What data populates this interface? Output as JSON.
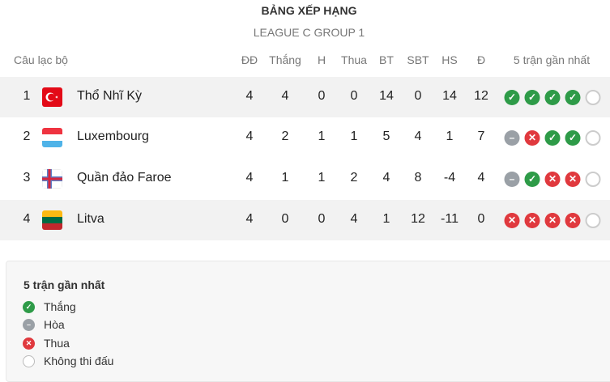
{
  "title": "BẢNG XẾP HẠNG",
  "subtitle": "LEAGUE C GROUP 1",
  "headers": {
    "club": "Câu lạc bộ",
    "played": "ĐĐ",
    "won": "Thắng",
    "draw": "H",
    "lost": "Thua",
    "gf": "BT",
    "ga": "SBT",
    "gd": "HS",
    "pts": "Đ",
    "form": "5 trận gần nhất"
  },
  "rows": [
    {
      "rank": "1",
      "team": "Thổ Nhĩ Kỳ",
      "flag": "turkey",
      "played": "4",
      "won": "4",
      "draw": "0",
      "lost": "0",
      "gf": "14",
      "ga": "0",
      "gd": "14",
      "pts": "12",
      "form": [
        "W",
        "W",
        "W",
        "W",
        "N"
      ]
    },
    {
      "rank": "2",
      "team": "Luxembourg",
      "flag": "luxembourg",
      "played": "4",
      "won": "2",
      "draw": "1",
      "lost": "1",
      "gf": "5",
      "ga": "4",
      "gd": "1",
      "pts": "7",
      "form": [
        "D",
        "L",
        "W",
        "W",
        "N"
      ]
    },
    {
      "rank": "3",
      "team": "Quần đảo Faroe",
      "flag": "faroe-islands",
      "played": "4",
      "won": "1",
      "draw": "1",
      "lost": "2",
      "gf": "4",
      "ga": "8",
      "gd": "-4",
      "pts": "4",
      "form": [
        "D",
        "W",
        "L",
        "L",
        "N"
      ]
    },
    {
      "rank": "4",
      "team": "Litva",
      "flag": "lithuania",
      "played": "4",
      "won": "0",
      "draw": "0",
      "lost": "4",
      "gf": "1",
      "ga": "12",
      "gd": "-11",
      "pts": "0",
      "form": [
        "L",
        "L",
        "L",
        "L",
        "N"
      ]
    }
  ],
  "legend": {
    "title": "5 trận gần nhất",
    "items": [
      {
        "key": "W",
        "label": "Thắng"
      },
      {
        "key": "D",
        "label": "Hòa"
      },
      {
        "key": "L",
        "label": "Thua"
      },
      {
        "key": "N",
        "label": "Không thi đấu"
      }
    ]
  },
  "colors": {
    "win": "#2e9b48",
    "draw": "#9aa0a6",
    "loss": "#e0393e"
  }
}
